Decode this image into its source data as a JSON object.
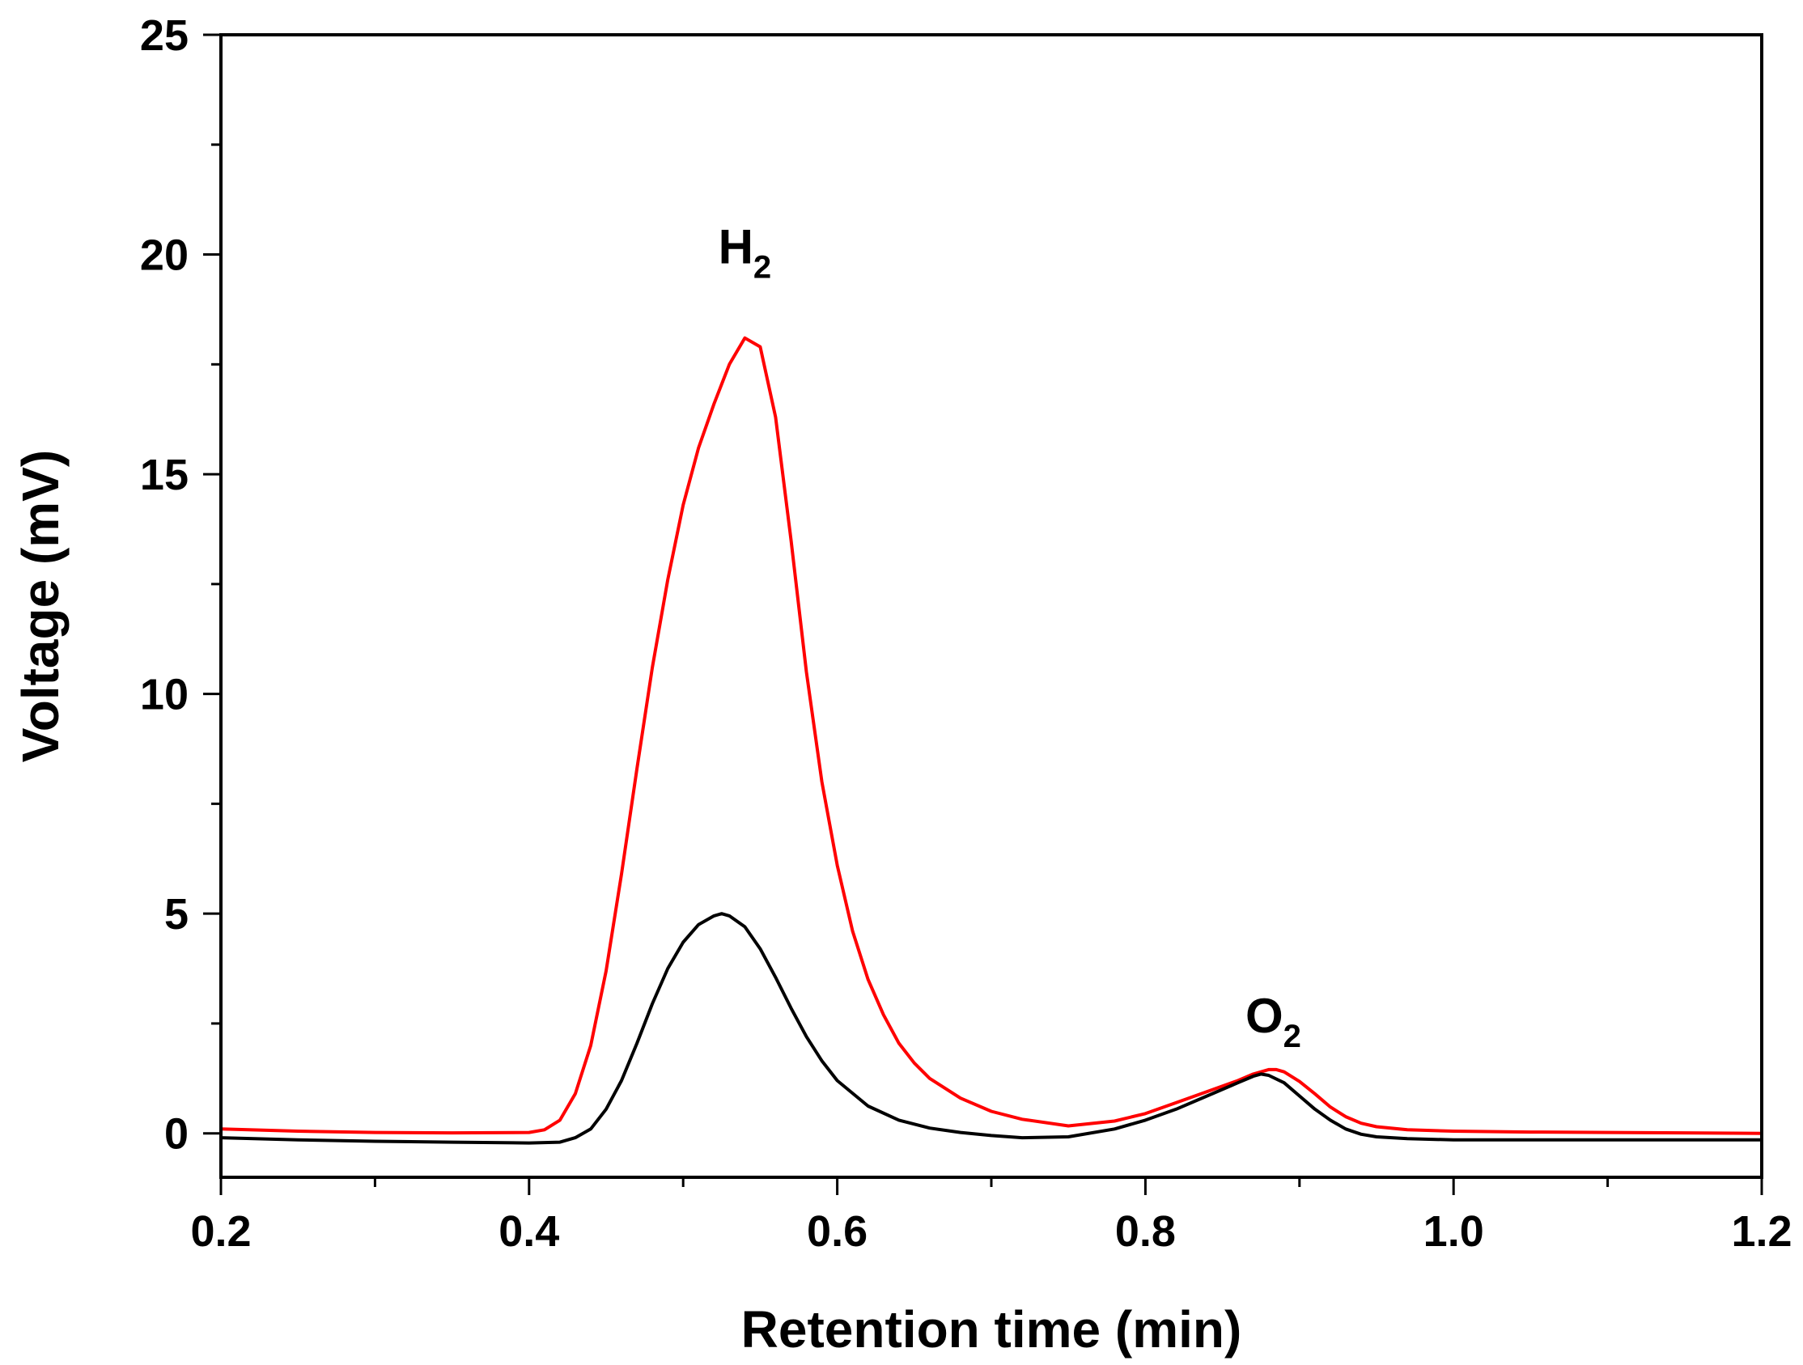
{
  "chart_data": {
    "type": "line",
    "title": "",
    "xlabel": "Retention time (min)",
    "ylabel": "Voltage (mV)",
    "xlim": [
      0.2,
      1.2
    ],
    "ylim": [
      -1,
      25
    ],
    "xticks": [
      0.2,
      0.4,
      0.6,
      0.8,
      1.0,
      1.2
    ],
    "xtick_labels": [
      "0.2",
      "0.4",
      "0.6",
      "0.8",
      "1.0",
      "1.2"
    ],
    "yticks": [
      0,
      5,
      10,
      15,
      20,
      25
    ],
    "ytick_labels": [
      "0",
      "5",
      "10",
      "15",
      "20",
      "25"
    ],
    "grid": false,
    "legend": "none",
    "annotations": [
      {
        "text": "H",
        "sub": "2",
        "x": 0.54,
        "y": 19.8
      },
      {
        "text": "O",
        "sub": "2",
        "x": 0.883,
        "y": 2.3
      }
    ],
    "series": [
      {
        "color": "#ff0000",
        "x": [
          0.2,
          0.25,
          0.3,
          0.35,
          0.4,
          0.41,
          0.42,
          0.43,
          0.44,
          0.45,
          0.46,
          0.47,
          0.48,
          0.49,
          0.5,
          0.51,
          0.52,
          0.53,
          0.54,
          0.55,
          0.56,
          0.57,
          0.58,
          0.59,
          0.6,
          0.61,
          0.62,
          0.63,
          0.64,
          0.65,
          0.66,
          0.68,
          0.7,
          0.72,
          0.75,
          0.78,
          0.8,
          0.82,
          0.84,
          0.86,
          0.87,
          0.88,
          0.885,
          0.89,
          0.9,
          0.91,
          0.92,
          0.93,
          0.94,
          0.95,
          0.97,
          1.0,
          1.05,
          1.1,
          1.15,
          1.2
        ],
        "y": [
          0.1,
          0.05,
          0.02,
          0.01,
          0.02,
          0.08,
          0.3,
          0.9,
          2.0,
          3.7,
          5.9,
          8.3,
          10.6,
          12.6,
          14.3,
          15.6,
          16.6,
          17.5,
          18.1,
          17.9,
          16.3,
          13.5,
          10.5,
          8.0,
          6.1,
          4.6,
          3.5,
          2.7,
          2.05,
          1.6,
          1.25,
          0.8,
          0.5,
          0.32,
          0.17,
          0.28,
          0.45,
          0.7,
          0.95,
          1.2,
          1.35,
          1.45,
          1.45,
          1.4,
          1.18,
          0.9,
          0.6,
          0.38,
          0.23,
          0.15,
          0.08,
          0.05,
          0.03,
          0.02,
          0.01,
          0.0
        ]
      },
      {
        "color": "#000000",
        "x": [
          0.2,
          0.25,
          0.3,
          0.35,
          0.4,
          0.42,
          0.43,
          0.44,
          0.45,
          0.46,
          0.47,
          0.48,
          0.49,
          0.5,
          0.51,
          0.52,
          0.525,
          0.53,
          0.54,
          0.55,
          0.56,
          0.57,
          0.58,
          0.59,
          0.6,
          0.62,
          0.64,
          0.66,
          0.68,
          0.7,
          0.72,
          0.75,
          0.78,
          0.8,
          0.82,
          0.84,
          0.86,
          0.87,
          0.875,
          0.88,
          0.89,
          0.9,
          0.91,
          0.92,
          0.93,
          0.94,
          0.95,
          0.97,
          1.0,
          1.05,
          1.1,
          1.15,
          1.2
        ],
        "y": [
          -0.1,
          -0.15,
          -0.18,
          -0.2,
          -0.22,
          -0.2,
          -0.1,
          0.1,
          0.55,
          1.2,
          2.05,
          2.95,
          3.75,
          4.35,
          4.75,
          4.95,
          5.0,
          4.95,
          4.7,
          4.2,
          3.55,
          2.85,
          2.2,
          1.65,
          1.2,
          0.62,
          0.3,
          0.12,
          0.02,
          -0.05,
          -0.1,
          -0.08,
          0.1,
          0.3,
          0.55,
          0.85,
          1.15,
          1.3,
          1.35,
          1.32,
          1.15,
          0.85,
          0.55,
          0.3,
          0.1,
          -0.02,
          -0.08,
          -0.12,
          -0.15,
          -0.15,
          -0.15,
          -0.15,
          -0.15
        ]
      }
    ]
  }
}
